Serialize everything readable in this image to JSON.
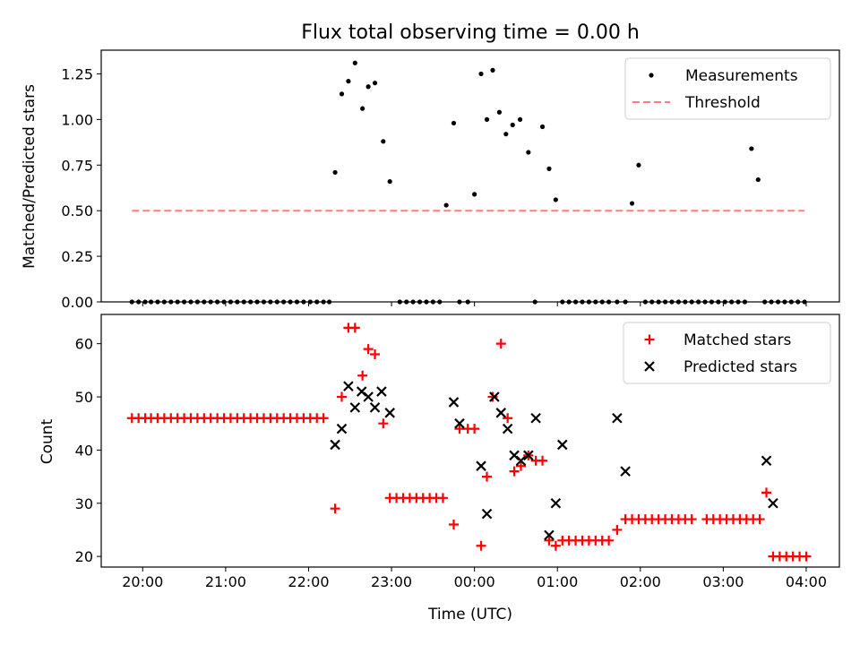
{
  "figure": {
    "title": "Flux total observing time = 0.00 h",
    "xlabel": "Time (UTC)"
  },
  "colors": {
    "measurement": "#000000",
    "threshold": "#ff7f7f",
    "matched": "#ff0000",
    "predicted": "#000000"
  },
  "chart_data": [
    {
      "type": "scatter",
      "ylabel": "Matched/Predicted stars",
      "ylim": [
        0,
        1.38
      ],
      "yticks": [
        0,
        0.25,
        0.5,
        0.75,
        1.0,
        1.25
      ],
      "ytick_labels": [
        "0.00",
        "0.25",
        "0.50",
        "0.75",
        "1.00",
        "1.25"
      ],
      "xlim_hours": [
        19.5,
        28.4
      ],
      "xticks_hours": [
        20,
        21,
        22,
        23,
        24,
        25,
        26,
        27,
        28
      ],
      "xtick_labels": [
        "20:00",
        "21:00",
        "22:00",
        "23:00",
        "00:00",
        "01:00",
        "02:00",
        "03:00",
        "04:00"
      ],
      "legend_position": "top-right",
      "series": [
        {
          "name": "Measurements",
          "marker": "dot",
          "x_hours": [
            19.87,
            19.95,
            20.03,
            20.1,
            20.18,
            20.26,
            20.34,
            20.42,
            20.5,
            20.58,
            20.66,
            20.74,
            20.82,
            20.9,
            20.98,
            21.06,
            21.14,
            21.22,
            21.3,
            21.38,
            21.46,
            21.54,
            21.62,
            21.7,
            21.78,
            21.86,
            21.94,
            22.02,
            22.1,
            22.18,
            22.25,
            22.32,
            22.4,
            22.48,
            22.56,
            22.65,
            22.72,
            22.8,
            22.9,
            22.98,
            23.1,
            23.18,
            23.26,
            23.34,
            23.42,
            23.5,
            23.58,
            23.66,
            23.75,
            23.82,
            23.92,
            24.0,
            24.08,
            24.15,
            24.22,
            24.3,
            24.38,
            24.46,
            24.55,
            24.65,
            24.73,
            24.82,
            24.9,
            24.98,
            25.06,
            25.14,
            25.22,
            25.3,
            25.38,
            25.46,
            25.54,
            25.62,
            25.72,
            25.82,
            25.9,
            25.98,
            26.06,
            26.14,
            26.22,
            26.3,
            26.38,
            26.46,
            26.54,
            26.62,
            26.7,
            26.78,
            26.86,
            26.94,
            27.02,
            27.1,
            27.18,
            27.26,
            27.34,
            27.42,
            27.5,
            27.58,
            27.66,
            27.74,
            27.82,
            27.9,
            27.98
          ],
          "y": [
            0,
            0,
            0,
            0,
            0,
            0,
            0,
            0,
            0,
            0,
            0,
            0,
            0,
            0,
            0,
            0,
            0,
            0,
            0,
            0,
            0,
            0,
            0,
            0,
            0,
            0,
            0,
            0,
            0,
            0,
            0,
            0.71,
            1.14,
            1.21,
            1.31,
            1.06,
            1.18,
            1.2,
            0.88,
            0.66,
            0,
            0,
            0,
            0,
            0,
            0,
            0,
            0.53,
            0.98,
            0,
            0,
            0.59,
            1.25,
            1.0,
            1.27,
            1.04,
            0.92,
            0.97,
            1.0,
            0.82,
            0,
            0.96,
            0.73,
            0.56,
            0,
            0,
            0,
            0,
            0,
            0,
            0,
            0,
            0,
            0,
            0.54,
            0.75,
            0,
            0,
            0,
            0,
            0,
            0,
            0,
            0,
            0,
            0,
            0,
            0,
            0,
            0,
            0,
            0,
            0.84,
            0.67,
            0,
            0,
            0,
            0,
            0,
            0,
            0
          ]
        },
        {
          "name": "Threshold",
          "marker": "dashed-line",
          "x_hours": [
            19.87,
            27.98
          ],
          "y": [
            0.5,
            0.5
          ]
        }
      ]
    },
    {
      "type": "scatter",
      "ylabel": "Count",
      "ylim": [
        18,
        65.5
      ],
      "yticks": [
        20,
        30,
        40,
        50,
        60
      ],
      "ytick_labels": [
        "20",
        "30",
        "40",
        "50",
        "60"
      ],
      "xlim_hours": [
        19.5,
        28.4
      ],
      "xticks_hours": [
        20,
        21,
        22,
        23,
        24,
        25,
        26,
        27,
        28
      ],
      "xtick_labels": [
        "20:00",
        "21:00",
        "22:00",
        "23:00",
        "00:00",
        "01:00",
        "02:00",
        "03:00",
        "04:00"
      ],
      "legend_position": "top-right",
      "series": [
        {
          "name": "Matched stars",
          "marker": "plus",
          "points": [
            [
              19.87,
              46
            ],
            [
              19.95,
              46
            ],
            [
              20.03,
              46
            ],
            [
              20.1,
              46
            ],
            [
              20.18,
              46
            ],
            [
              20.26,
              46
            ],
            [
              20.34,
              46
            ],
            [
              20.42,
              46
            ],
            [
              20.5,
              46
            ],
            [
              20.58,
              46
            ],
            [
              20.66,
              46
            ],
            [
              20.74,
              46
            ],
            [
              20.82,
              46
            ],
            [
              20.9,
              46
            ],
            [
              20.98,
              46
            ],
            [
              21.06,
              46
            ],
            [
              21.14,
              46
            ],
            [
              21.22,
              46
            ],
            [
              21.3,
              46
            ],
            [
              21.38,
              46
            ],
            [
              21.46,
              46
            ],
            [
              21.54,
              46
            ],
            [
              21.62,
              46
            ],
            [
              21.7,
              46
            ],
            [
              21.78,
              46
            ],
            [
              21.86,
              46
            ],
            [
              21.94,
              46
            ],
            [
              22.02,
              46
            ],
            [
              22.1,
              46
            ],
            [
              22.18,
              46
            ],
            [
              22.32,
              29
            ],
            [
              22.4,
              50
            ],
            [
              22.48,
              63
            ],
            [
              22.56,
              63
            ],
            [
              22.65,
              54
            ],
            [
              22.72,
              59
            ],
            [
              22.8,
              58
            ],
            [
              22.9,
              45
            ],
            [
              22.98,
              31
            ],
            [
              23.06,
              31
            ],
            [
              23.14,
              31
            ],
            [
              23.22,
              31
            ],
            [
              23.3,
              31
            ],
            [
              23.38,
              31
            ],
            [
              23.46,
              31
            ],
            [
              23.54,
              31
            ],
            [
              23.62,
              31
            ],
            [
              23.75,
              26
            ],
            [
              23.82,
              44
            ],
            [
              23.92,
              44
            ],
            [
              24.0,
              44
            ],
            [
              24.08,
              22
            ],
            [
              24.15,
              35
            ],
            [
              24.22,
              50
            ],
            [
              24.32,
              60
            ],
            [
              24.4,
              46
            ],
            [
              24.48,
              36
            ],
            [
              24.56,
              37
            ],
            [
              24.65,
              39
            ],
            [
              24.74,
              38
            ],
            [
              24.82,
              38
            ],
            [
              24.9,
              23
            ],
            [
              24.98,
              22
            ],
            [
              25.06,
              23
            ],
            [
              25.14,
              23
            ],
            [
              25.22,
              23
            ],
            [
              25.3,
              23
            ],
            [
              25.38,
              23
            ],
            [
              25.46,
              23
            ],
            [
              25.54,
              23
            ],
            [
              25.62,
              23
            ],
            [
              25.72,
              25
            ],
            [
              25.82,
              27
            ],
            [
              25.9,
              27
            ],
            [
              25.98,
              27
            ],
            [
              26.06,
              27
            ],
            [
              26.14,
              27
            ],
            [
              26.22,
              27
            ],
            [
              26.3,
              27
            ],
            [
              26.38,
              27
            ],
            [
              26.46,
              27
            ],
            [
              26.54,
              27
            ],
            [
              26.62,
              27
            ],
            [
              26.8,
              27
            ],
            [
              26.88,
              27
            ],
            [
              26.96,
              27
            ],
            [
              27.04,
              27
            ],
            [
              27.12,
              27
            ],
            [
              27.2,
              27
            ],
            [
              27.28,
              27
            ],
            [
              27.36,
              27
            ],
            [
              27.44,
              27
            ],
            [
              27.52,
              32
            ],
            [
              27.6,
              20
            ],
            [
              27.68,
              20
            ],
            [
              27.76,
              20
            ],
            [
              27.84,
              20
            ],
            [
              27.92,
              20
            ],
            [
              28.0,
              20
            ]
          ]
        },
        {
          "name": "Predicted stars",
          "marker": "x",
          "points": [
            [
              22.32,
              41
            ],
            [
              22.4,
              44
            ],
            [
              22.48,
              52
            ],
            [
              22.56,
              48
            ],
            [
              22.64,
              51
            ],
            [
              22.72,
              50
            ],
            [
              22.8,
              48
            ],
            [
              22.88,
              51
            ],
            [
              22.98,
              47
            ],
            [
              23.75,
              49
            ],
            [
              23.82,
              45
            ],
            [
              24.08,
              37
            ],
            [
              24.15,
              28
            ],
            [
              24.24,
              50
            ],
            [
              24.32,
              47
            ],
            [
              24.4,
              44
            ],
            [
              24.48,
              39
            ],
            [
              24.56,
              38
            ],
            [
              24.65,
              39
            ],
            [
              24.74,
              46
            ],
            [
              24.9,
              24
            ],
            [
              24.98,
              30
            ],
            [
              25.06,
              41
            ],
            [
              25.72,
              46
            ],
            [
              25.82,
              36
            ],
            [
              27.52,
              38
            ],
            [
              27.6,
              30
            ]
          ]
        }
      ]
    }
  ]
}
